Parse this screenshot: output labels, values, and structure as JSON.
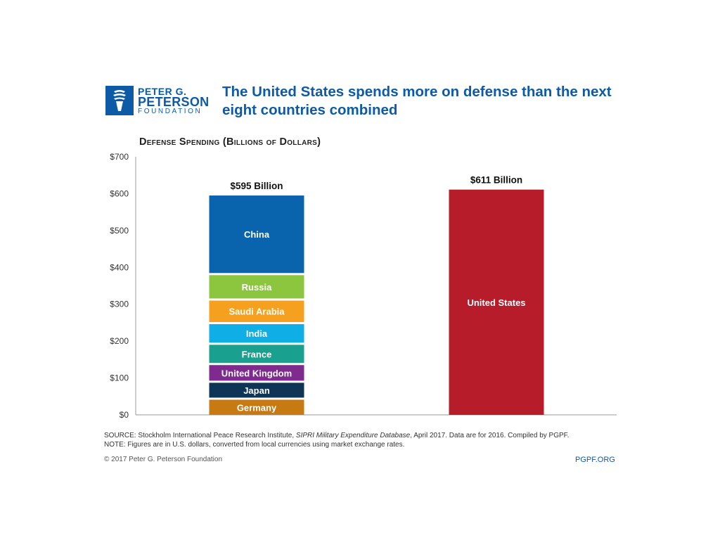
{
  "header": {
    "logo_line1": "PETER G.",
    "logo_line2": "PETERSON",
    "logo_line3": "FOUNDATION",
    "title": "The United States spends more on defense than the next eight countries combined"
  },
  "footer": {
    "source_prefix": "SOURCE: Stockholm International Peace Research Institute, ",
    "source_italic": "SIPRI Military Expenditure Database",
    "source_suffix": ", April 2017. Data are for 2016. Compiled by PGPF.",
    "note": "NOTE: Figures are in U.S. dollars, converted from local currencies using market exchange rates.",
    "copyright": "© 2017 Peter G. Peterson Foundation",
    "site": "PGPF.ORG"
  },
  "chart_data": {
    "type": "bar",
    "stacked": true,
    "title": "Defense Spending (Billions of Dollars)",
    "xlabel": "",
    "ylabel": "",
    "ylim": [
      0,
      700
    ],
    "yticks": [
      0,
      100,
      200,
      300,
      400,
      500,
      600,
      700
    ],
    "ytick_labels": [
      "$0",
      "$100",
      "$200",
      "$300",
      "$400",
      "$500",
      "$600",
      "$700"
    ],
    "grid": false,
    "legend": "none",
    "bars": [
      {
        "total_label": "$595 Billion",
        "total": 595,
        "segments": [
          {
            "name": "Germany",
            "value": 41,
            "color": "#c77a12"
          },
          {
            "name": "Japan",
            "value": 46,
            "color": "#0f3556"
          },
          {
            "name": "United Kingdom",
            "value": 48,
            "color": "#7e2a8e"
          },
          {
            "name": "France",
            "value": 55,
            "color": "#1aa08e"
          },
          {
            "name": "India",
            "value": 56,
            "color": "#10aee6"
          },
          {
            "name": "Saudi Arabia",
            "value": 64,
            "color": "#f5a11f"
          },
          {
            "name": "Russia",
            "value": 69,
            "color": "#8cc63f"
          },
          {
            "name": "China",
            "value": 216,
            "color": "#0a63ad"
          }
        ]
      },
      {
        "total_label": "$611 Billion",
        "total": 611,
        "segments": [
          {
            "name": "United States",
            "value": 611,
            "color": "#b71c2a"
          }
        ]
      }
    ]
  }
}
